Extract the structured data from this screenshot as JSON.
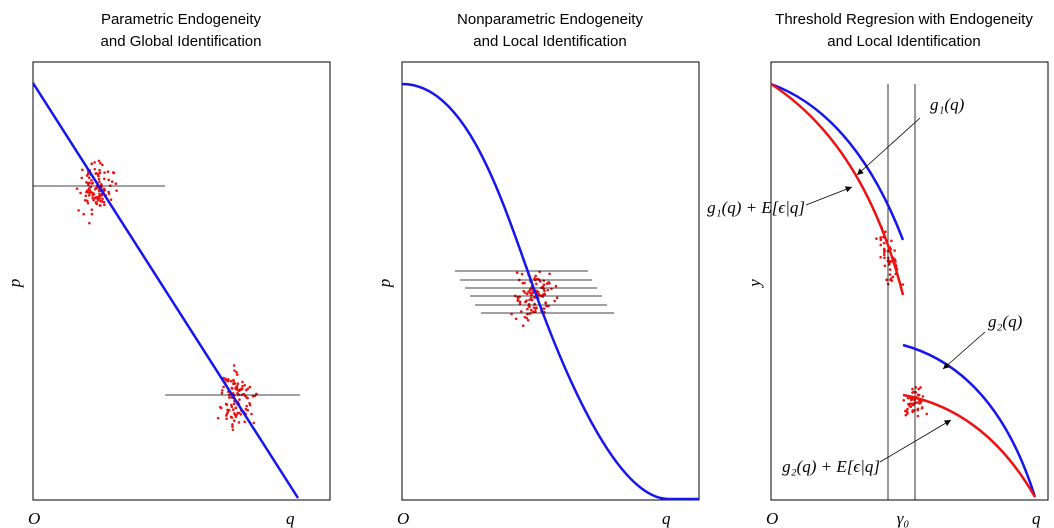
{
  "panels": [
    {
      "title": [
        "Parametric Endogeneity",
        "and Global Identification"
      ],
      "origin": "O",
      "x_label": "q",
      "y_label": "p"
    },
    {
      "title": [
        "Nonparametric Endogeneity",
        "and Local Identification"
      ],
      "origin": "O",
      "x_label": "q",
      "y_label": "p"
    },
    {
      "title": [
        "Threshold Regresion with Endogeneity",
        "and Local Identification"
      ],
      "origin": "O",
      "x_label": "q",
      "y_label": "y",
      "x_marker": "γ₀",
      "annotations": [
        "g₁(q)",
        "g₁(q) + E[ϵ|q]",
        "g₂(q)",
        "g₂(q) + E[ϵ|q]"
      ]
    }
  ]
}
